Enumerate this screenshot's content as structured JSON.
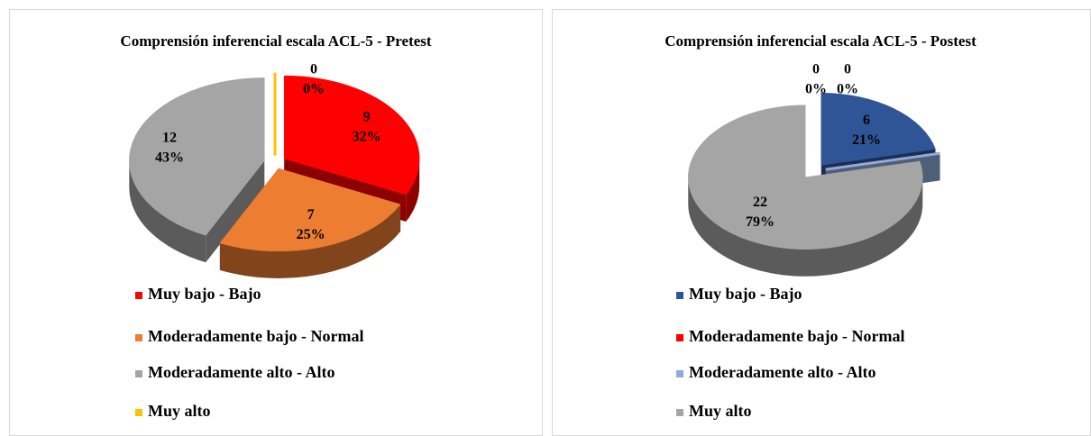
{
  "chart_data": [
    {
      "type": "pie",
      "title": "Comprensión inferencial escala ACL-5 - Pretest",
      "categories": [
        "Muy bajo - Bajo",
        "Moderadamente bajo - Normal",
        "Moderadamente alto - Alto",
        "Muy alto"
      ],
      "values": [
        9,
        7,
        12,
        0
      ],
      "percent_labels": [
        "32%",
        "25%",
        "43%",
        "0%"
      ],
      "colors": [
        "#ff0000",
        "#ed7d31",
        "#a5a5a5",
        "#ffc000"
      ]
    },
    {
      "type": "pie",
      "title": "Comprensión inferencial escala ACL-5 - Postest",
      "categories": [
        "Muy bajo - Bajo",
        "Moderadamente bajo - Normal",
        "Moderadamente alto - Alto",
        "Muy alto"
      ],
      "values": [
        6,
        0,
        0,
        22
      ],
      "percent_labels": [
        "21%",
        "0%",
        "0%",
        "79%"
      ],
      "colors": [
        "#2f5597",
        "#ff0000",
        "#8faadc",
        "#a5a5a5"
      ]
    }
  ]
}
